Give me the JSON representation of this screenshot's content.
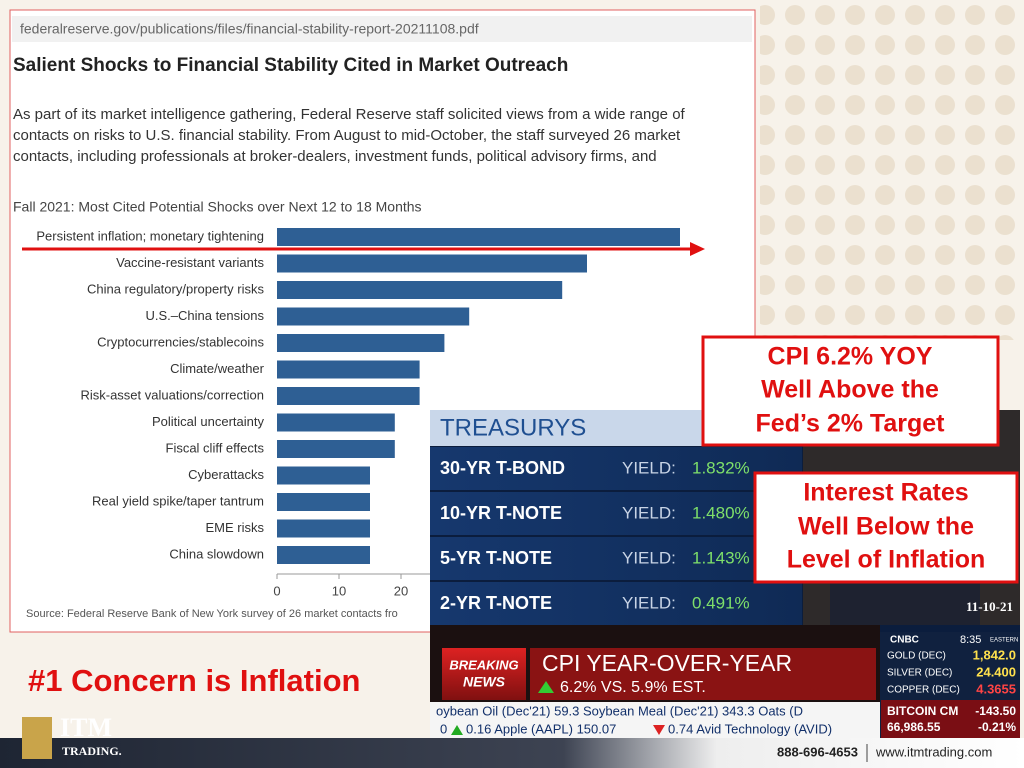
{
  "report": {
    "url": "federalreserve.gov/publications/files/financial-stability-report-20211108.pdf",
    "heading": "Salient Shocks to Financial Stability Cited in Market Outreach",
    "paragraph": [
      "As part of its market intelligence gathering, Federal Reserve staff solicited views from a wide range of",
      "contacts on risks to U.S. financial stability. From August to mid-October, the staff surveyed 26 market",
      "contacts, including professionals at broker-dealers, investment funds, political advisory firms, and"
    ],
    "chart": {
      "type": "bar",
      "title": "Fall 2021: Most Cited Potential Shocks over Next 12 to 18 Months",
      "categories": [
        "Persistent inflation; monetary tightening",
        "Vaccine-resistant variants",
        "China regulatory/property risks",
        "U.S.–China tensions",
        "Cryptocurrencies/stablecoins",
        "Climate/weather",
        "Risk-asset valuations/correction",
        "Political uncertainty",
        "Fiscal cliff effects",
        "Cyberattacks",
        "Real yield spike/taper tantrum",
        "EME risks",
        "China slowdown"
      ],
      "values": [
        65,
        50,
        46,
        31,
        27,
        23,
        23,
        19,
        19,
        15,
        15,
        15,
        15
      ],
      "color": "#2e5f94",
      "xlim": [
        0,
        70
      ],
      "xticks": [
        0,
        10,
        20
      ]
    },
    "source": "Source: Federal Reserve Bank of New York survey of 26 market contacts fro"
  },
  "callouts": {
    "cpi": [
      "CPI 6.2% YOY",
      "Well Above the",
      "Fed’s 2% Target"
    ],
    "rates": [
      "Interest Rates",
      "Well Below the",
      "Level of Inflation"
    ],
    "concern": "#1 Concern is Inflation"
  },
  "tv": {
    "header": "TREASURYS",
    "yield_label": "YIELD:",
    "rows": [
      [
        "30-YR T-BOND",
        "1.832%"
      ],
      [
        "10-YR T-NOTE",
        "1.480%"
      ],
      [
        "5-YR T-NOTE",
        "1.143%"
      ],
      [
        "2-YR T-NOTE",
        "0.491%"
      ]
    ],
    "date": "11-10-21",
    "breaking": [
      "BREAKING",
      "NEWS"
    ],
    "headline": "CPI YEAR-OVER-YEAR",
    "subline": "6.2% VS.  5.9% EST.",
    "ticker1": "oybean Oil (Dec'21) 59.3   Soybean Meal (Dec'21) 343.3   Oats (D",
    "ticker2a": "0",
    "ticker2b": "0.16  Apple (AAPL) 150.07",
    "ticker2c": "0.74  Avid Technology (AVID)",
    "network": "CNBC",
    "time": "8:35",
    "zone": "EASTERN",
    "commodities": [
      [
        "GOLD (DEC)",
        "1,842.0"
      ],
      [
        "SILVER (DEC)",
        "24.400"
      ],
      [
        "COPPER (DEC)",
        "4.3655"
      ]
    ],
    "bitcoin": [
      "BITCOIN CM",
      "-143.50",
      "66,986.55",
      "-0.21%"
    ]
  },
  "footer": {
    "logo": "ITM",
    "logo_sub": "TRADING.",
    "phone": "888-696-4653",
    "site": "www.itmtrading.com"
  }
}
